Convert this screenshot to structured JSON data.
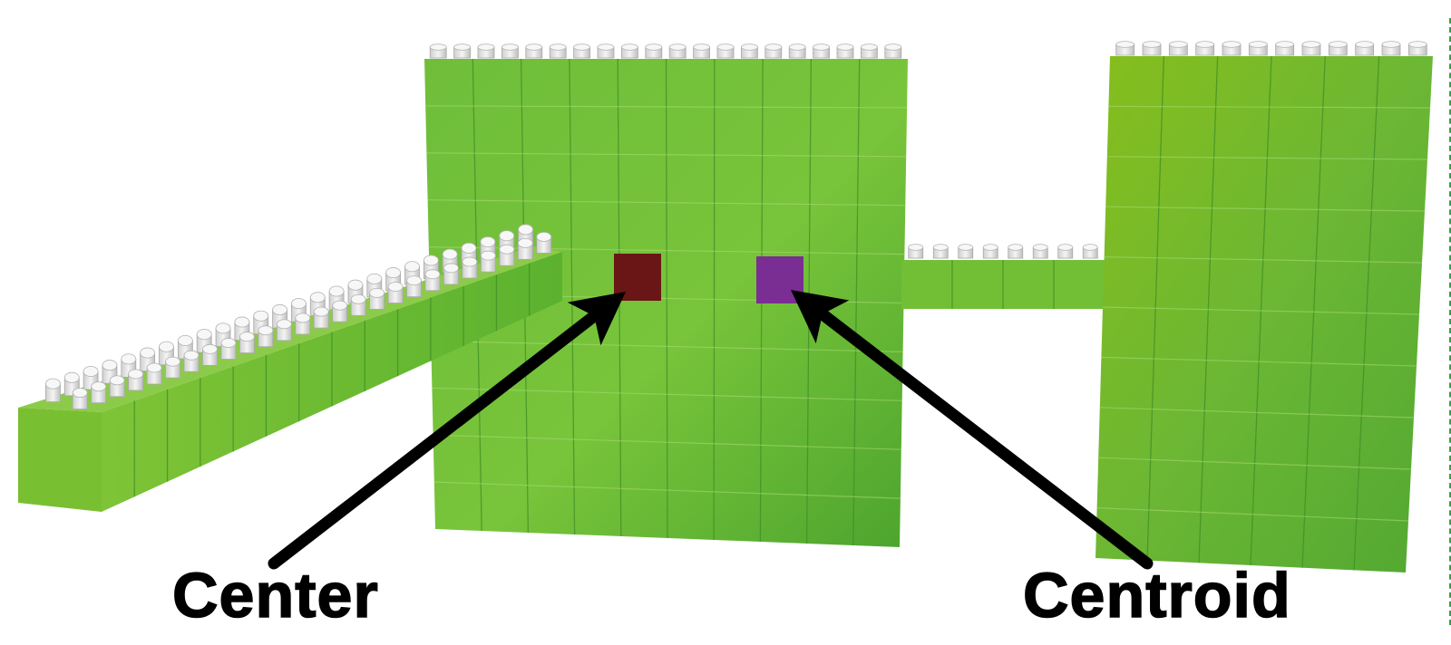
{
  "labels": {
    "center": "Center",
    "centroid": "Centroid"
  },
  "colors": {
    "brick": "#6cbd34",
    "brick_light": "#86c32a",
    "brick_dark": "#4ca52b",
    "stud": "#dcdcdc",
    "center_marker": "#6a1616",
    "centroid_marker": "#7a2d92",
    "arrow": "#000000"
  },
  "shapes": {
    "left_beam": "beam",
    "middle_wall": "square-wall",
    "connector": "bridge",
    "right_wall": "tall-wall"
  }
}
